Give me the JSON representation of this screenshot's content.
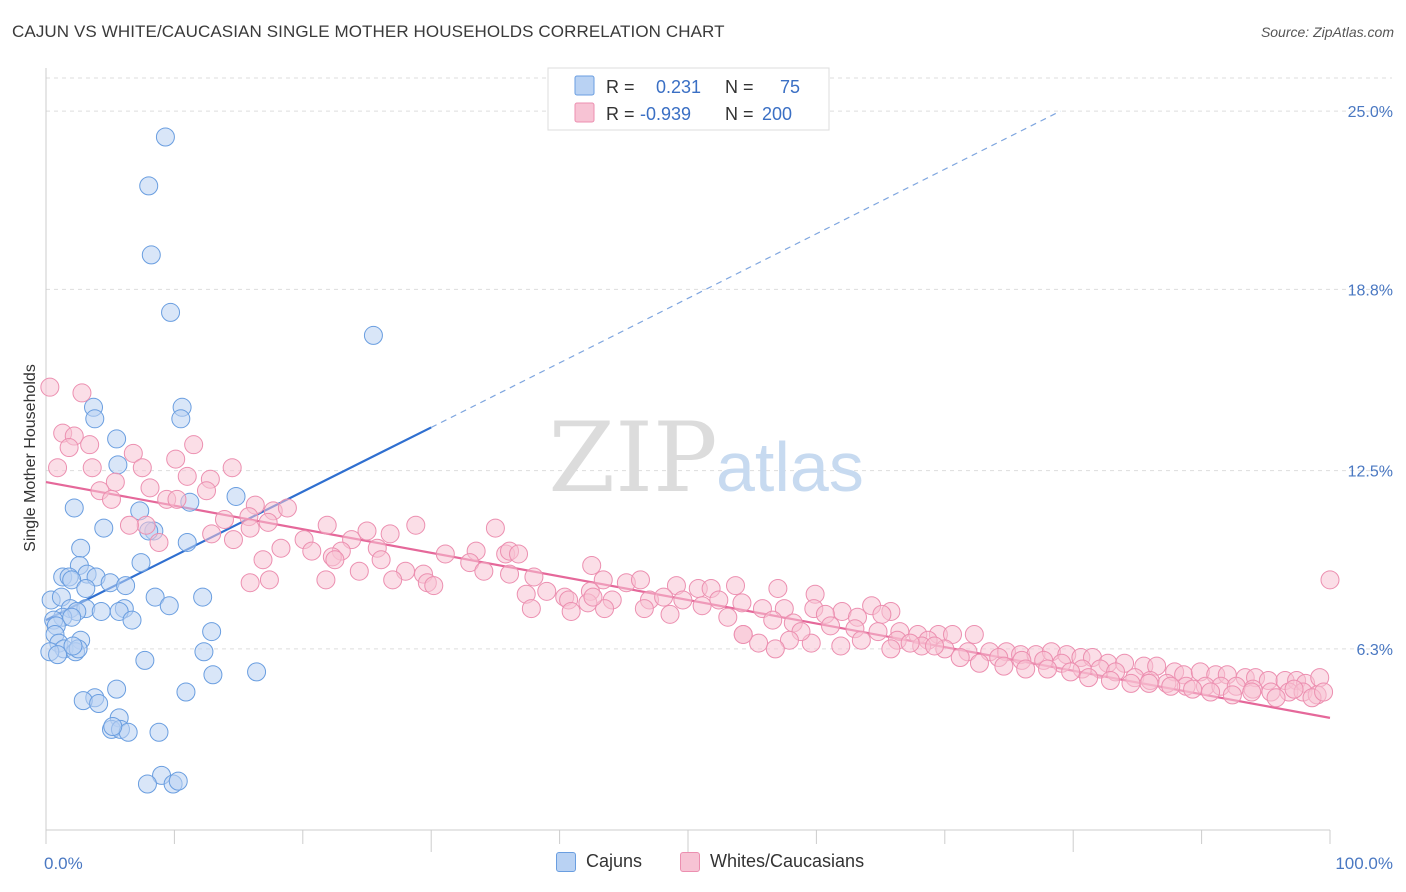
{
  "title": "CAJUN VS WHITE/CAUCASIAN SINGLE MOTHER HOUSEHOLDS CORRELATION CHART",
  "source": "Source: ZipAtlas.com",
  "watermark": {
    "zip": "ZIP",
    "atlas": "atlas"
  },
  "legend": {
    "r_label": "R =",
    "n_label": "N =",
    "rows": [
      {
        "r": "0.231",
        "n": "75",
        "color": "#6a9ee0"
      },
      {
        "r": "-0.939",
        "n": "200",
        "color": "#ec8fb0"
      }
    ]
  },
  "chart_data": {
    "type": "scatter",
    "ylabel": "Single Mother Households",
    "xlim": [
      0,
      100
    ],
    "ylim": [
      0,
      26.5
    ],
    "x_tick_labels": [
      "0.0%",
      "100.0%"
    ],
    "y_ticks": [
      6.3,
      12.5,
      18.8,
      25.0
    ],
    "y_tick_labels": [
      "6.3%",
      "12.5%",
      "18.8%",
      "25.0%"
    ],
    "grid": "horizontal dashed",
    "legend_position": "bottom",
    "series": [
      {
        "name": "Cajuns",
        "color": "#6a9ee0",
        "fill": "#b9d2f3",
        "trend": {
          "x0": 0,
          "y0": 7.3,
          "x1": 30,
          "y1": 14.0,
          "extend_to_x": 79,
          "extend_y": 25.0
        },
        "points": [
          [
            9.3,
            24.1
          ],
          [
            8.0,
            22.4
          ],
          [
            8.2,
            20.0
          ],
          [
            9.7,
            18.0
          ],
          [
            25.5,
            17.2
          ],
          [
            10.6,
            14.7
          ],
          [
            3.7,
            14.7
          ],
          [
            10.5,
            14.3
          ],
          [
            3.8,
            14.3
          ],
          [
            5.5,
            13.6
          ],
          [
            5.6,
            12.7
          ],
          [
            14.8,
            11.6
          ],
          [
            11.2,
            11.4
          ],
          [
            2.2,
            11.2
          ],
          [
            7.3,
            11.1
          ],
          [
            8.4,
            10.4
          ],
          [
            4.5,
            10.5
          ],
          [
            8.0,
            10.4
          ],
          [
            11.0,
            10.0
          ],
          [
            2.7,
            9.8
          ],
          [
            2.6,
            9.2
          ],
          [
            7.4,
            9.3
          ],
          [
            1.3,
            8.8
          ],
          [
            3.2,
            8.9
          ],
          [
            3.9,
            8.8
          ],
          [
            1.8,
            8.8
          ],
          [
            2.0,
            8.7
          ],
          [
            5.0,
            8.6
          ],
          [
            6.2,
            8.5
          ],
          [
            3.1,
            8.4
          ],
          [
            0.4,
            8.0
          ],
          [
            1.2,
            8.1
          ],
          [
            8.5,
            8.1
          ],
          [
            12.2,
            8.1
          ],
          [
            9.6,
            7.8
          ],
          [
            1.9,
            7.7
          ],
          [
            3.1,
            7.7
          ],
          [
            2.4,
            7.6
          ],
          [
            4.3,
            7.6
          ],
          [
            6.1,
            7.7
          ],
          [
            5.7,
            7.6
          ],
          [
            1.3,
            7.4
          ],
          [
            2.0,
            7.4
          ],
          [
            6.7,
            7.3
          ],
          [
            0.6,
            7.3
          ],
          [
            0.8,
            7.1
          ],
          [
            0.7,
            6.8
          ],
          [
            12.9,
            6.9
          ],
          [
            1.0,
            6.5
          ],
          [
            2.7,
            6.6
          ],
          [
            1.4,
            6.3
          ],
          [
            2.3,
            6.2
          ],
          [
            0.3,
            6.2
          ],
          [
            2.5,
            6.3
          ],
          [
            0.9,
            6.1
          ],
          [
            12.3,
            6.2
          ],
          [
            7.7,
            5.9
          ],
          [
            16.4,
            5.5
          ],
          [
            13.0,
            5.4
          ],
          [
            5.5,
            4.9
          ],
          [
            10.9,
            4.8
          ],
          [
            3.8,
            4.6
          ],
          [
            2.9,
            4.5
          ],
          [
            4.1,
            4.4
          ],
          [
            5.7,
            3.9
          ],
          [
            5.1,
            3.5
          ],
          [
            5.8,
            3.5
          ],
          [
            8.8,
            3.4
          ],
          [
            6.4,
            3.4
          ],
          [
            9.0,
            1.9
          ],
          [
            7.9,
            1.6
          ],
          [
            9.9,
            1.6
          ],
          [
            10.3,
            1.7
          ],
          [
            5.2,
            3.6
          ],
          [
            2.1,
            6.4
          ]
        ]
      },
      {
        "name": "Whites/Caucasians",
        "color": "#ec8fb0",
        "fill": "#f7c3d4",
        "trend": {
          "x0": 0,
          "y0": 12.1,
          "x1": 100,
          "y1": 3.9
        },
        "points": [
          [
            0.3,
            15.4
          ],
          [
            2.8,
            15.2
          ],
          [
            1.3,
            13.8
          ],
          [
            2.2,
            13.7
          ],
          [
            3.4,
            13.4
          ],
          [
            1.8,
            13.3
          ],
          [
            11.5,
            13.4
          ],
          [
            6.8,
            13.1
          ],
          [
            10.1,
            12.9
          ],
          [
            0.9,
            12.6
          ],
          [
            3.6,
            12.6
          ],
          [
            7.5,
            12.6
          ],
          [
            14.5,
            12.6
          ],
          [
            11.0,
            12.3
          ],
          [
            5.4,
            12.1
          ],
          [
            8.1,
            11.9
          ],
          [
            12.8,
            12.2
          ],
          [
            12.5,
            11.8
          ],
          [
            4.2,
            11.8
          ],
          [
            5.1,
            11.5
          ],
          [
            9.4,
            11.5
          ],
          [
            10.2,
            11.5
          ],
          [
            16.3,
            11.3
          ],
          [
            17.7,
            11.1
          ],
          [
            18.8,
            11.2
          ],
          [
            15.8,
            10.9
          ],
          [
            13.9,
            10.8
          ],
          [
            17.3,
            10.7
          ],
          [
            7.8,
            10.6
          ],
          [
            6.5,
            10.6
          ],
          [
            8.8,
            10.0
          ],
          [
            12.9,
            10.3
          ],
          [
            14.6,
            10.1
          ],
          [
            15.9,
            10.5
          ],
          [
            21.9,
            10.6
          ],
          [
            23.8,
            10.1
          ],
          [
            25.0,
            10.4
          ],
          [
            26.8,
            10.3
          ],
          [
            28.8,
            10.6
          ],
          [
            20.1,
            10.1
          ],
          [
            23.0,
            9.7
          ],
          [
            22.3,
            9.5
          ],
          [
            18.3,
            9.8
          ],
          [
            20.7,
            9.7
          ],
          [
            22.5,
            9.4
          ],
          [
            25.8,
            9.8
          ],
          [
            31.1,
            9.6
          ],
          [
            33.5,
            9.7
          ],
          [
            33.0,
            9.3
          ],
          [
            35.8,
            9.6
          ],
          [
            36.1,
            9.7
          ],
          [
            36.8,
            9.6
          ],
          [
            35.0,
            10.5
          ],
          [
            26.1,
            9.4
          ],
          [
            28.0,
            9.0
          ],
          [
            29.4,
            8.9
          ],
          [
            29.7,
            8.6
          ],
          [
            30.2,
            8.5
          ],
          [
            27.0,
            8.7
          ],
          [
            24.4,
            9.0
          ],
          [
            21.8,
            8.7
          ],
          [
            17.4,
            8.7
          ],
          [
            15.9,
            8.6
          ],
          [
            16.9,
            9.4
          ],
          [
            34.1,
            9.0
          ],
          [
            36.1,
            8.9
          ],
          [
            38.0,
            8.8
          ],
          [
            42.5,
            9.2
          ],
          [
            43.4,
            8.7
          ],
          [
            45.2,
            8.6
          ],
          [
            46.3,
            8.7
          ],
          [
            49.1,
            8.5
          ],
          [
            50.8,
            8.4
          ],
          [
            51.8,
            8.4
          ],
          [
            53.7,
            8.5
          ],
          [
            57.0,
            8.4
          ],
          [
            59.9,
            8.2
          ],
          [
            37.4,
            8.2
          ],
          [
            39.0,
            8.3
          ],
          [
            40.4,
            8.1
          ],
          [
            40.7,
            8.0
          ],
          [
            42.4,
            8.3
          ],
          [
            44.1,
            8.0
          ],
          [
            47.0,
            8.0
          ],
          [
            48.1,
            8.1
          ],
          [
            49.6,
            8.0
          ],
          [
            52.4,
            8.0
          ],
          [
            54.2,
            7.9
          ],
          [
            55.8,
            7.7
          ],
          [
            57.5,
            7.7
          ],
          [
            59.8,
            7.7
          ],
          [
            62.0,
            7.6
          ],
          [
            64.3,
            7.8
          ],
          [
            65.8,
            7.6
          ],
          [
            60.7,
            7.5
          ],
          [
            63.2,
            7.4
          ],
          [
            65.1,
            7.5
          ],
          [
            51.1,
            7.8
          ],
          [
            46.6,
            7.7
          ],
          [
            43.5,
            7.7
          ],
          [
            42.2,
            7.9
          ],
          [
            37.8,
            7.7
          ],
          [
            40.9,
            7.6
          ],
          [
            48.6,
            7.5
          ],
          [
            53.1,
            7.4
          ],
          [
            56.6,
            7.3
          ],
          [
            58.2,
            7.2
          ],
          [
            61.1,
            7.1
          ],
          [
            63.0,
            7.0
          ],
          [
            64.8,
            6.9
          ],
          [
            66.5,
            6.9
          ],
          [
            67.9,
            6.8
          ],
          [
            69.5,
            6.8
          ],
          [
            70.6,
            6.8
          ],
          [
            72.3,
            6.8
          ],
          [
            68.7,
            6.6
          ],
          [
            66.3,
            6.6
          ],
          [
            68.2,
            6.4
          ],
          [
            70.0,
            6.3
          ],
          [
            71.8,
            6.2
          ],
          [
            73.5,
            6.2
          ],
          [
            74.8,
            6.2
          ],
          [
            75.9,
            6.1
          ],
          [
            77.1,
            6.1
          ],
          [
            78.3,
            6.2
          ],
          [
            79.5,
            6.1
          ],
          [
            80.6,
            6.0
          ],
          [
            81.5,
            6.0
          ],
          [
            82.7,
            5.8
          ],
          [
            84.0,
            5.8
          ],
          [
            85.5,
            5.7
          ],
          [
            86.5,
            5.7
          ],
          [
            87.9,
            5.5
          ],
          [
            88.6,
            5.4
          ],
          [
            89.9,
            5.5
          ],
          [
            91.1,
            5.4
          ],
          [
            92.0,
            5.4
          ],
          [
            93.4,
            5.3
          ],
          [
            94.2,
            5.3
          ],
          [
            95.2,
            5.2
          ],
          [
            96.5,
            5.2
          ],
          [
            97.4,
            5.2
          ],
          [
            98.1,
            5.1
          ],
          [
            99.2,
            5.3
          ],
          [
            74.2,
            6.0
          ],
          [
            76.0,
            5.9
          ],
          [
            77.7,
            5.9
          ],
          [
            79.1,
            5.8
          ],
          [
            80.7,
            5.6
          ],
          [
            82.1,
            5.6
          ],
          [
            83.3,
            5.5
          ],
          [
            84.8,
            5.3
          ],
          [
            86.0,
            5.2
          ],
          [
            87.3,
            5.1
          ],
          [
            88.8,
            5.0
          ],
          [
            90.3,
            5.0
          ],
          [
            91.5,
            5.0
          ],
          [
            92.7,
            5.0
          ],
          [
            94.0,
            4.9
          ],
          [
            95.4,
            4.8
          ],
          [
            96.8,
            4.8
          ],
          [
            97.9,
            4.8
          ],
          [
            99.0,
            4.7
          ],
          [
            69.2,
            6.4
          ],
          [
            71.2,
            6.0
          ],
          [
            72.7,
            5.8
          ],
          [
            74.6,
            5.7
          ],
          [
            76.3,
            5.6
          ],
          [
            78.0,
            5.6
          ],
          [
            79.8,
            5.5
          ],
          [
            81.2,
            5.3
          ],
          [
            82.9,
            5.2
          ],
          [
            84.5,
            5.1
          ],
          [
            85.9,
            5.1
          ],
          [
            87.6,
            5.0
          ],
          [
            89.3,
            4.9
          ],
          [
            90.7,
            4.8
          ],
          [
            92.4,
            4.7
          ],
          [
            93.9,
            4.8
          ],
          [
            95.8,
            4.6
          ],
          [
            97.2,
            4.9
          ],
          [
            98.6,
            4.6
          ],
          [
            99.5,
            4.8
          ],
          [
            67.3,
            6.5
          ],
          [
            65.8,
            6.3
          ],
          [
            63.5,
            6.6
          ],
          [
            61.9,
            6.4
          ],
          [
            59.6,
            6.5
          ],
          [
            58.8,
            6.9
          ],
          [
            57.9,
            6.6
          ],
          [
            55.5,
            6.5
          ],
          [
            54.3,
            6.8
          ],
          [
            56.8,
            6.3
          ],
          [
            100.0,
            8.7
          ],
          [
            54.3,
            6.8
          ],
          [
            42.6,
            8.1
          ]
        ]
      }
    ]
  },
  "bottom_legend": [
    {
      "label": "Cajuns",
      "color": "#6a9ee0",
      "fill": "#b9d2f3"
    },
    {
      "label": "Whites/Caucasians",
      "color": "#ec8fb0",
      "fill": "#f7c3d4"
    }
  ]
}
